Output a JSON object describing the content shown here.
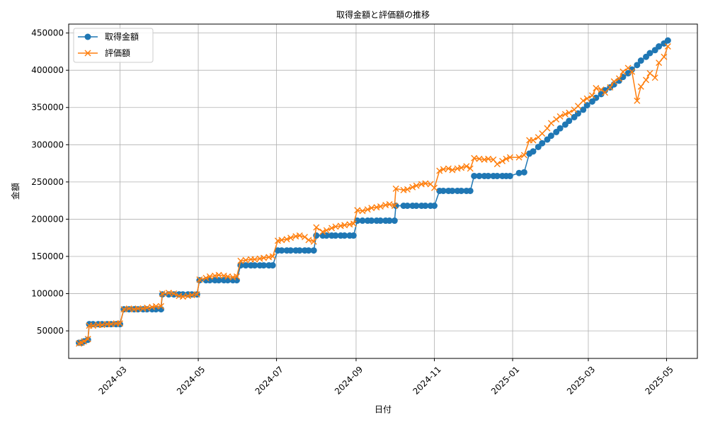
{
  "chart_data": {
    "type": "line",
    "title": "取得金額と評価額の推移",
    "xlabel": "日付",
    "ylabel": "金額",
    "grid": true,
    "legend_position": "top-left",
    "x_range": [
      "2024-01-21",
      "2025-05-25"
    ],
    "y_range": [
      13000,
      462000
    ],
    "x_ticks": [
      "2024-03",
      "2024-05",
      "2024-07",
      "2024-09",
      "2024-11",
      "2025-01",
      "2025-03",
      "2025-05"
    ],
    "x_tick_dates": [
      "2024-03-01",
      "2024-05-01",
      "2024-07-01",
      "2024-09-01",
      "2024-11-01",
      "2025-01-01",
      "2025-03-01",
      "2025-05-01"
    ],
    "y_ticks": [
      50000,
      100000,
      150000,
      200000,
      250000,
      300000,
      350000,
      400000,
      450000
    ],
    "series": [
      {
        "name": "取得金額",
        "color": "#1f77b4",
        "marker": "circle",
        "points": [
          [
            "2024-01-29",
            34000
          ],
          [
            "2024-01-31",
            34000
          ],
          [
            "2024-02-02",
            36000
          ],
          [
            "2024-02-05",
            38000
          ],
          [
            "2024-02-06",
            59000
          ],
          [
            "2024-02-09",
            59000
          ],
          [
            "2024-02-13",
            59000
          ],
          [
            "2024-02-16",
            59000
          ],
          [
            "2024-02-20",
            59000
          ],
          [
            "2024-02-23",
            59000
          ],
          [
            "2024-02-27",
            59000
          ],
          [
            "2024-03-01",
            59000
          ],
          [
            "2024-03-04",
            79000
          ],
          [
            "2024-03-08",
            79000
          ],
          [
            "2024-03-12",
            79000
          ],
          [
            "2024-03-15",
            79000
          ],
          [
            "2024-03-19",
            79000
          ],
          [
            "2024-03-22",
            79000
          ],
          [
            "2024-03-26",
            79000
          ],
          [
            "2024-03-29",
            79000
          ],
          [
            "2024-04-02",
            79000
          ],
          [
            "2024-04-03",
            99000
          ],
          [
            "2024-04-08",
            99000
          ],
          [
            "2024-04-12",
            99000
          ],
          [
            "2024-04-16",
            99000
          ],
          [
            "2024-04-19",
            99000
          ],
          [
            "2024-04-23",
            99000
          ],
          [
            "2024-04-26",
            99000
          ],
          [
            "2024-04-30",
            99000
          ],
          [
            "2024-05-02",
            118000
          ],
          [
            "2024-05-07",
            118000
          ],
          [
            "2024-05-10",
            118000
          ],
          [
            "2024-05-14",
            118000
          ],
          [
            "2024-05-17",
            118000
          ],
          [
            "2024-05-21",
            118000
          ],
          [
            "2024-05-24",
            118000
          ],
          [
            "2024-05-28",
            118000
          ],
          [
            "2024-05-31",
            118000
          ],
          [
            "2024-06-03",
            138000
          ],
          [
            "2024-06-07",
            138000
          ],
          [
            "2024-06-11",
            138000
          ],
          [
            "2024-06-14",
            138000
          ],
          [
            "2024-06-18",
            138000
          ],
          [
            "2024-06-21",
            138000
          ],
          [
            "2024-06-25",
            138000
          ],
          [
            "2024-06-28",
            138000
          ],
          [
            "2024-07-02",
            158000
          ],
          [
            "2024-07-05",
            158000
          ],
          [
            "2024-07-09",
            158000
          ],
          [
            "2024-07-12",
            158000
          ],
          [
            "2024-07-16",
            158000
          ],
          [
            "2024-07-19",
            158000
          ],
          [
            "2024-07-23",
            158000
          ],
          [
            "2024-07-26",
            158000
          ],
          [
            "2024-07-30",
            158000
          ],
          [
            "2024-08-01",
            178000
          ],
          [
            "2024-08-06",
            178000
          ],
          [
            "2024-08-09",
            178000
          ],
          [
            "2024-08-13",
            178000
          ],
          [
            "2024-08-16",
            178000
          ],
          [
            "2024-08-20",
            178000
          ],
          [
            "2024-08-23",
            178000
          ],
          [
            "2024-08-27",
            178000
          ],
          [
            "2024-08-30",
            178000
          ],
          [
            "2024-09-02",
            198000
          ],
          [
            "2024-09-06",
            198000
          ],
          [
            "2024-09-10",
            198000
          ],
          [
            "2024-09-13",
            198000
          ],
          [
            "2024-09-17",
            198000
          ],
          [
            "2024-09-20",
            198000
          ],
          [
            "2024-09-24",
            198000
          ],
          [
            "2024-09-27",
            198000
          ],
          [
            "2024-10-01",
            198000
          ],
          [
            "2024-10-02",
            218000
          ],
          [
            "2024-10-08",
            218000
          ],
          [
            "2024-10-11",
            218000
          ],
          [
            "2024-10-15",
            218000
          ],
          [
            "2024-10-18",
            218000
          ],
          [
            "2024-10-22",
            218000
          ],
          [
            "2024-10-25",
            218000
          ],
          [
            "2024-10-29",
            218000
          ],
          [
            "2024-11-01",
            218000
          ],
          [
            "2024-11-05",
            238000
          ],
          [
            "2024-11-08",
            238000
          ],
          [
            "2024-11-12",
            238000
          ],
          [
            "2024-11-15",
            238000
          ],
          [
            "2024-11-19",
            238000
          ],
          [
            "2024-11-22",
            238000
          ],
          [
            "2024-11-26",
            238000
          ],
          [
            "2024-11-29",
            238000
          ],
          [
            "2024-12-02",
            258000
          ],
          [
            "2024-12-06",
            258000
          ],
          [
            "2024-12-10",
            258000
          ],
          [
            "2024-12-13",
            258000
          ],
          [
            "2024-12-17",
            258000
          ],
          [
            "2024-12-20",
            258000
          ],
          [
            "2024-12-24",
            258000
          ],
          [
            "2024-12-27",
            258000
          ],
          [
            "2024-12-30",
            258000
          ],
          [
            "2025-01-06",
            262000
          ],
          [
            "2025-01-10",
            263000
          ],
          [
            "2025-01-14",
            288000
          ],
          [
            "2025-01-17",
            291000
          ],
          [
            "2025-01-21",
            297000
          ],
          [
            "2025-01-24",
            302000
          ],
          [
            "2025-01-28",
            307000
          ],
          [
            "2025-01-31",
            312000
          ],
          [
            "2025-02-04",
            317000
          ],
          [
            "2025-02-07",
            322000
          ],
          [
            "2025-02-11",
            327000
          ],
          [
            "2025-02-14",
            332000
          ],
          [
            "2025-02-18",
            337000
          ],
          [
            "2025-02-21",
            342000
          ],
          [
            "2025-02-25",
            347000
          ],
          [
            "2025-02-28",
            353000
          ],
          [
            "2025-03-04",
            358000
          ],
          [
            "2025-03-07",
            363000
          ],
          [
            "2025-03-11",
            368000
          ],
          [
            "2025-03-14",
            373000
          ],
          [
            "2025-03-18",
            377000
          ],
          [
            "2025-03-21",
            381000
          ],
          [
            "2025-03-25",
            386000
          ],
          [
            "2025-03-28",
            391000
          ],
          [
            "2025-04-01",
            396000
          ],
          [
            "2025-04-04",
            401000
          ],
          [
            "2025-04-08",
            407000
          ],
          [
            "2025-04-11",
            413000
          ],
          [
            "2025-04-15",
            418000
          ],
          [
            "2025-04-18",
            423000
          ],
          [
            "2025-04-22",
            427000
          ],
          [
            "2025-04-25",
            432000
          ],
          [
            "2025-04-29",
            436000
          ],
          [
            "2025-05-02",
            440000
          ]
        ]
      },
      {
        "name": "評価額",
        "color": "#ff7f0e",
        "marker": "x",
        "points": [
          [
            "2024-01-29",
            33000
          ],
          [
            "2024-01-31",
            34000
          ],
          [
            "2024-02-02",
            36000
          ],
          [
            "2024-02-05",
            39000
          ],
          [
            "2024-02-06",
            57000
          ],
          [
            "2024-02-09",
            57000
          ],
          [
            "2024-02-13",
            58000
          ],
          [
            "2024-02-16",
            58000
          ],
          [
            "2024-02-20",
            59000
          ],
          [
            "2024-02-23",
            59000
          ],
          [
            "2024-02-27",
            60000
          ],
          [
            "2024-03-01",
            60000
          ],
          [
            "2024-03-04",
            79000
          ],
          [
            "2024-03-08",
            80000
          ],
          [
            "2024-03-12",
            79000
          ],
          [
            "2024-03-15",
            80000
          ],
          [
            "2024-03-19",
            80000
          ],
          [
            "2024-03-22",
            81000
          ],
          [
            "2024-03-26",
            82000
          ],
          [
            "2024-03-29",
            83000
          ],
          [
            "2024-04-02",
            83000
          ],
          [
            "2024-04-03",
            100000
          ],
          [
            "2024-04-08",
            101000
          ],
          [
            "2024-04-12",
            100000
          ],
          [
            "2024-04-16",
            97000
          ],
          [
            "2024-04-19",
            96000
          ],
          [
            "2024-04-23",
            97000
          ],
          [
            "2024-04-26",
            98000
          ],
          [
            "2024-04-30",
            99000
          ],
          [
            "2024-05-02",
            119000
          ],
          [
            "2024-05-07",
            121000
          ],
          [
            "2024-05-10",
            123000
          ],
          [
            "2024-05-14",
            124000
          ],
          [
            "2024-05-17",
            125000
          ],
          [
            "2024-05-21",
            124000
          ],
          [
            "2024-05-24",
            123000
          ],
          [
            "2024-05-28",
            122000
          ],
          [
            "2024-05-31",
            123000
          ],
          [
            "2024-06-03",
            144000
          ],
          [
            "2024-06-07",
            145000
          ],
          [
            "2024-06-11",
            146000
          ],
          [
            "2024-06-14",
            146000
          ],
          [
            "2024-06-18",
            147000
          ],
          [
            "2024-06-21",
            148000
          ],
          [
            "2024-06-25",
            149000
          ],
          [
            "2024-06-28",
            150000
          ],
          [
            "2024-07-02",
            171000
          ],
          [
            "2024-07-05",
            172000
          ],
          [
            "2024-07-09",
            173000
          ],
          [
            "2024-07-12",
            175000
          ],
          [
            "2024-07-16",
            177000
          ],
          [
            "2024-07-19",
            178000
          ],
          [
            "2024-07-23",
            176000
          ],
          [
            "2024-07-26",
            172000
          ],
          [
            "2024-07-30",
            170000
          ],
          [
            "2024-08-01",
            189000
          ],
          [
            "2024-08-06",
            183000
          ],
          [
            "2024-08-09",
            185000
          ],
          [
            "2024-08-13",
            188000
          ],
          [
            "2024-08-16",
            190000
          ],
          [
            "2024-08-20",
            191000
          ],
          [
            "2024-08-23",
            192000
          ],
          [
            "2024-08-27",
            193000
          ],
          [
            "2024-08-30",
            194000
          ],
          [
            "2024-09-02",
            212000
          ],
          [
            "2024-09-06",
            211000
          ],
          [
            "2024-09-10",
            213000
          ],
          [
            "2024-09-13",
            215000
          ],
          [
            "2024-09-17",
            216000
          ],
          [
            "2024-09-20",
            217000
          ],
          [
            "2024-09-24",
            219000
          ],
          [
            "2024-09-27",
            220000
          ],
          [
            "2024-10-01",
            218000
          ],
          [
            "2024-10-02",
            241000
          ],
          [
            "2024-10-08",
            239000
          ],
          [
            "2024-10-11",
            240000
          ],
          [
            "2024-10-15",
            243000
          ],
          [
            "2024-10-18",
            245000
          ],
          [
            "2024-10-22",
            247000
          ],
          [
            "2024-10-25",
            248000
          ],
          [
            "2024-10-29",
            247000
          ],
          [
            "2024-11-01",
            242000
          ],
          [
            "2024-11-05",
            265000
          ],
          [
            "2024-11-08",
            267000
          ],
          [
            "2024-11-12",
            268000
          ],
          [
            "2024-11-15",
            266000
          ],
          [
            "2024-11-19",
            268000
          ],
          [
            "2024-11-22",
            269000
          ],
          [
            "2024-11-26",
            271000
          ],
          [
            "2024-11-29",
            268000
          ],
          [
            "2024-12-02",
            282000
          ],
          [
            "2024-12-06",
            281000
          ],
          [
            "2024-12-10",
            280000
          ],
          [
            "2024-12-13",
            281000
          ],
          [
            "2024-12-17",
            280000
          ],
          [
            "2024-12-20",
            274000
          ],
          [
            "2024-12-24",
            278000
          ],
          [
            "2024-12-27",
            281000
          ],
          [
            "2024-12-30",
            283000
          ],
          [
            "2025-01-06",
            283000
          ],
          [
            "2025-01-10",
            286000
          ],
          [
            "2025-01-14",
            306000
          ],
          [
            "2025-01-17",
            306000
          ],
          [
            "2025-01-21",
            310000
          ],
          [
            "2025-01-24",
            315000
          ],
          [
            "2025-01-28",
            322000
          ],
          [
            "2025-01-31",
            329000
          ],
          [
            "2025-02-04",
            334000
          ],
          [
            "2025-02-07",
            338000
          ],
          [
            "2025-02-11",
            341000
          ],
          [
            "2025-02-14",
            343000
          ],
          [
            "2025-02-18",
            347000
          ],
          [
            "2025-02-21",
            352000
          ],
          [
            "2025-02-25",
            359000
          ],
          [
            "2025-02-28",
            362000
          ],
          [
            "2025-03-04",
            366000
          ],
          [
            "2025-03-07",
            376000
          ],
          [
            "2025-03-11",
            374000
          ],
          [
            "2025-03-14",
            370000
          ],
          [
            "2025-03-18",
            377000
          ],
          [
            "2025-03-21",
            385000
          ],
          [
            "2025-03-25",
            389000
          ],
          [
            "2025-03-28",
            398000
          ],
          [
            "2025-04-01",
            403000
          ],
          [
            "2025-04-04",
            398000
          ],
          [
            "2025-04-08",
            359000
          ],
          [
            "2025-04-11",
            378000
          ],
          [
            "2025-04-15",
            387000
          ],
          [
            "2025-04-18",
            396000
          ],
          [
            "2025-04-22",
            390000
          ],
          [
            "2025-04-25",
            410000
          ],
          [
            "2025-04-29",
            418000
          ],
          [
            "2025-05-02",
            432000
          ]
        ]
      }
    ]
  }
}
